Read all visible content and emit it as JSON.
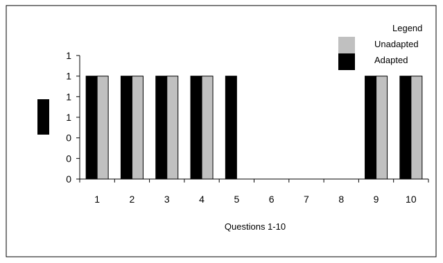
{
  "chart_data": {
    "type": "bar",
    "categories": [
      "1",
      "2",
      "3",
      "4",
      "5",
      "6",
      "7",
      "8",
      "9",
      "10"
    ],
    "series": [
      {
        "name": "Adapted",
        "color": "#000000",
        "values": [
          1,
          1,
          1,
          1,
          1,
          0,
          0,
          0,
          1,
          1
        ]
      },
      {
        "name": "Unadapted",
        "color": "#c0c0c0",
        "values": [
          1,
          1,
          1,
          1,
          0,
          0,
          0,
          0,
          1,
          1
        ]
      }
    ],
    "title": "",
    "xlabel": "Questions 1-10",
    "ylabel": "",
    "ylim": [
      0,
      1.2
    ],
    "yticks": [
      {
        "value": 0,
        "label": "0"
      },
      {
        "value": 0.2,
        "label": "0"
      },
      {
        "value": 0.4,
        "label": "0"
      },
      {
        "value": 0.6,
        "label": "1"
      },
      {
        "value": 0.8,
        "label": "1"
      },
      {
        "value": 1.0,
        "label": "1"
      },
      {
        "value": 1.2,
        "label": "1"
      }
    ],
    "grid": false,
    "legend": {
      "title": "Legend",
      "placement": "top-right",
      "entries": [
        "Unadapted",
        "Adapted"
      ]
    }
  }
}
